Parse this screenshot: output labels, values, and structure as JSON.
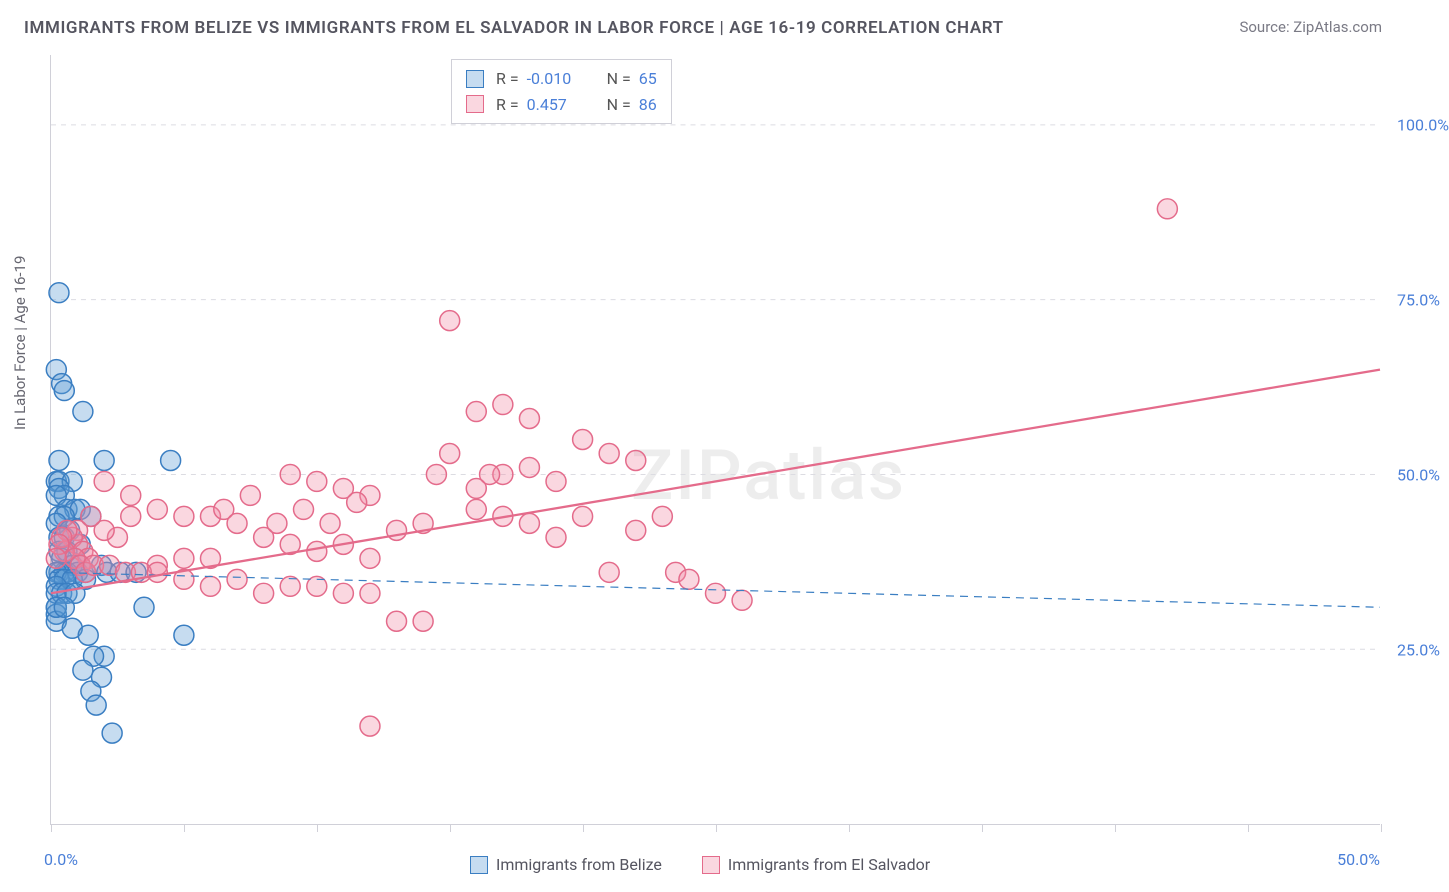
{
  "title": "IMMIGRANTS FROM BELIZE VS IMMIGRANTS FROM EL SALVADOR IN LABOR FORCE | AGE 16-19 CORRELATION CHART",
  "source": "Source: ZipAtlas.com",
  "ylabel": "In Labor Force | Age 16-19",
  "watermark": "ZIPatlas",
  "chart": {
    "type": "scatter",
    "background": "#ffffff",
    "grid_color": "#dcdce2",
    "axis_color": "#d0d0d8",
    "tick_label_color": "#4a7fd8",
    "xlim": [
      0,
      50
    ],
    "ylim": [
      0,
      110
    ],
    "yticks": [
      25,
      50,
      75,
      100
    ],
    "ytick_labels": [
      "25.0%",
      "50.0%",
      "75.0%",
      "100.0%"
    ],
    "xticks": [
      0,
      5,
      10,
      15,
      20,
      25,
      30,
      35,
      40,
      45,
      50
    ],
    "xtick_label_left": "0.0%",
    "xtick_label_right": "50.0%",
    "marker_radius": 10,
    "marker_fill_opacity": 0.35,
    "marker_stroke_width": 1.5,
    "series": [
      {
        "name": "Immigrants from Belize",
        "color": "#5b9bd5",
        "stroke": "#3a7ec2",
        "fill": "rgba(91,155,213,0.35)",
        "stats": {
          "R": "-0.010",
          "N": "65"
        },
        "trend": {
          "y_at_x0": 36,
          "y_at_x50": 31,
          "dash": "8 6",
          "width": 1.2
        },
        "points": [
          [
            0.3,
            76
          ],
          [
            0.2,
            65
          ],
          [
            0.4,
            63
          ],
          [
            0.5,
            62
          ],
          [
            1.2,
            59
          ],
          [
            0.3,
            52
          ],
          [
            2.0,
            52
          ],
          [
            0.2,
            49
          ],
          [
            0.3,
            49
          ],
          [
            0.8,
            49
          ],
          [
            4.5,
            52
          ],
          [
            0.2,
            31
          ],
          [
            0.3,
            48
          ],
          [
            0.5,
            47
          ],
          [
            0.2,
            47
          ],
          [
            0.6,
            45
          ],
          [
            0.9,
            45
          ],
          [
            1.1,
            45
          ],
          [
            0.3,
            44
          ],
          [
            0.5,
            44
          ],
          [
            1.5,
            44
          ],
          [
            0.2,
            43
          ],
          [
            0.7,
            42
          ],
          [
            0.3,
            41
          ],
          [
            0.5,
            41
          ],
          [
            1.1,
            40
          ],
          [
            0.2,
            30
          ],
          [
            0.3,
            39
          ],
          [
            0.6,
            39
          ],
          [
            0.2,
            29
          ],
          [
            0.4,
            38
          ],
          [
            0.8,
            37
          ],
          [
            1.1,
            37
          ],
          [
            1.9,
            37
          ],
          [
            0.5,
            36
          ],
          [
            0.3,
            36
          ],
          [
            0.6,
            36
          ],
          [
            0.2,
            36
          ],
          [
            1,
            36
          ],
          [
            1.3,
            36
          ],
          [
            2.1,
            36
          ],
          [
            2.6,
            36
          ],
          [
            3.2,
            36
          ],
          [
            0.3,
            35
          ],
          [
            0.5,
            35
          ],
          [
            0.8,
            35
          ],
          [
            1.3,
            35
          ],
          [
            0.2,
            34
          ],
          [
            0.2,
            33
          ],
          [
            0.4,
            33
          ],
          [
            0.6,
            33
          ],
          [
            0.9,
            33
          ],
          [
            0.2,
            31
          ],
          [
            0.5,
            31
          ],
          [
            3.5,
            31
          ],
          [
            5,
            27
          ],
          [
            0.8,
            28
          ],
          [
            1.4,
            27
          ],
          [
            2,
            24
          ],
          [
            1.6,
            24
          ],
          [
            1.2,
            22
          ],
          [
            1.9,
            21
          ],
          [
            1.5,
            19
          ],
          [
            1.7,
            17
          ],
          [
            2.3,
            13
          ]
        ]
      },
      {
        "name": "Immigrants from El Salvador",
        "color": "#f28ca6",
        "stroke": "#e46b8b",
        "fill": "rgba(242,140,166,0.35)",
        "stats": {
          "R": "0.457",
          "N": "86"
        },
        "trend": {
          "y_at_x0": 33,
          "y_at_x50": 65,
          "dash": "none",
          "width": 2.3
        },
        "points": [
          [
            42,
            88
          ],
          [
            15,
            72
          ],
          [
            17,
            60
          ],
          [
            18,
            58
          ],
          [
            16,
            59
          ],
          [
            20,
            55
          ],
          [
            21,
            53
          ],
          [
            22,
            52
          ],
          [
            19,
            49
          ],
          [
            17,
            50
          ],
          [
            18,
            51
          ],
          [
            16.5,
            50
          ],
          [
            16,
            48
          ],
          [
            9,
            50
          ],
          [
            10,
            49
          ],
          [
            11,
            48
          ],
          [
            12,
            47
          ],
          [
            13,
            42
          ],
          [
            14,
            43
          ],
          [
            14.5,
            50
          ],
          [
            15,
            53
          ],
          [
            16,
            45
          ],
          [
            17,
            44
          ],
          [
            18,
            43
          ],
          [
            19,
            41
          ],
          [
            20,
            44
          ],
          [
            21,
            36
          ],
          [
            22,
            42
          ],
          [
            23,
            44
          ],
          [
            23.5,
            36
          ],
          [
            24,
            35
          ],
          [
            25,
            33
          ],
          [
            26,
            32
          ],
          [
            13,
            29
          ],
          [
            14,
            29
          ],
          [
            2,
            49
          ],
          [
            3,
            47
          ],
          [
            4,
            45
          ],
          [
            5,
            44
          ],
          [
            6,
            44
          ],
          [
            6.5,
            45
          ],
          [
            7,
            43
          ],
          [
            7.5,
            47
          ],
          [
            8,
            41
          ],
          [
            8.5,
            43
          ],
          [
            9,
            40
          ],
          [
            9.5,
            45
          ],
          [
            10,
            39
          ],
          [
            10.5,
            43
          ],
          [
            11,
            40
          ],
          [
            11.5,
            46
          ],
          [
            12,
            38
          ],
          [
            4,
            37
          ],
          [
            5,
            38
          ],
          [
            6,
            38
          ],
          [
            12,
            14
          ],
          [
            3,
            44
          ],
          [
            2.5,
            41
          ],
          [
            2,
            42
          ],
          [
            1.5,
            44
          ],
          [
            1,
            42
          ],
          [
            1,
            40
          ],
          [
            0.8,
            41
          ],
          [
            1.2,
            39
          ],
          [
            1.4,
            38
          ],
          [
            0.5,
            39
          ],
          [
            0.9,
            38
          ],
          [
            0.6,
            42
          ],
          [
            0.4,
            41
          ],
          [
            0.3,
            40
          ],
          [
            0.2,
            38
          ],
          [
            1.1,
            37
          ],
          [
            1.3,
            36
          ],
          [
            1.6,
            37
          ],
          [
            2.2,
            37
          ],
          [
            2.8,
            36
          ],
          [
            3.4,
            36
          ],
          [
            4,
            36
          ],
          [
            5,
            35
          ],
          [
            6,
            34
          ],
          [
            7,
            35
          ],
          [
            8,
            33
          ],
          [
            9,
            34
          ],
          [
            10,
            34
          ],
          [
            11,
            33
          ],
          [
            12,
            33
          ]
        ]
      }
    ]
  },
  "legend_top": {
    "r_label": "R =",
    "n_label": "N ="
  },
  "legend_bottom": {
    "items": [
      "Immigrants from Belize",
      "Immigrants from El Salvador"
    ]
  }
}
